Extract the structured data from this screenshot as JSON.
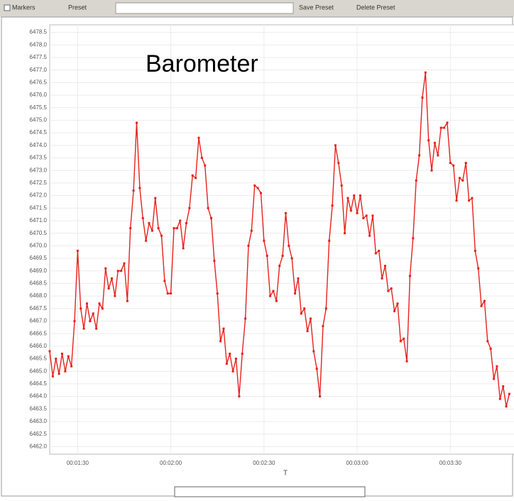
{
  "toolbar": {
    "markers": "Markers",
    "preset": "Preset",
    "save": "Save Preset",
    "delete": "Delete Preset"
  },
  "chart_data": {
    "type": "line",
    "title": "Barometer",
    "x_label": "T",
    "color": "#e8211d",
    "grid": true,
    "markers": true,
    "xlim": [
      81,
      230.5
    ],
    "ylim": [
      6461.7,
      6478.8
    ],
    "xticks": [
      {
        "value": 90,
        "label": "00:01:30"
      },
      {
        "value": 120,
        "label": "00:02:00"
      },
      {
        "value": 150,
        "label": "00:02:30"
      },
      {
        "value": 180,
        "label": "00:03:00"
      },
      {
        "value": 210,
        "label": "00:03:30"
      }
    ],
    "yticks": [
      {
        "value": 6462,
        "label": "6462.0"
      },
      6462.5,
      {
        "value": 6463,
        "label": "6463.0"
      },
      6463.5,
      {
        "value": 6464,
        "label": "6464.0"
      },
      6464.5,
      {
        "value": 6465,
        "label": "6465.0"
      },
      6465.5,
      {
        "value": 6466,
        "label": "6466.0"
      },
      6466.5,
      {
        "value": 6467,
        "label": "6467.0"
      },
      6467.5,
      {
        "value": 6468,
        "label": "6468.0"
      },
      6468.5,
      {
        "value": 6469,
        "label": "6469.0"
      },
      6469.5,
      {
        "value": 6470,
        "label": "6470.0"
      },
      6470.5,
      {
        "value": 6471,
        "label": "6471.0"
      },
      6471.5,
      {
        "value": 6472,
        "label": "6472.0"
      },
      6472.5,
      {
        "value": 6473,
        "label": "6473.0"
      },
      6473.5,
      {
        "value": 6474,
        "label": "6474.0"
      },
      6474.5,
      {
        "value": 6475,
        "label": "6475.0"
      },
      6475.5,
      {
        "value": 6476,
        "label": "6476.0"
      },
      6476.5,
      {
        "value": 6477,
        "label": "6477.0"
      },
      6477.5,
      {
        "value": 6478,
        "label": "6478.0"
      },
      6478.5
    ],
    "x": [
      81,
      82,
      83,
      84,
      85,
      86,
      87,
      88,
      89,
      90,
      91,
      92,
      93,
      94,
      95,
      96,
      97,
      98,
      99,
      100,
      101,
      102,
      103,
      104,
      105,
      106,
      107,
      108,
      109,
      110,
      111,
      112,
      113,
      114,
      115,
      116,
      117,
      118,
      119,
      120,
      121,
      122,
      123,
      124,
      125,
      126,
      127,
      128,
      129,
      130,
      131,
      132,
      133,
      134,
      135,
      136,
      137,
      138,
      139,
      140,
      141,
      142,
      143,
      144,
      145,
      146,
      147,
      148,
      149,
      150,
      151,
      152,
      153,
      154,
      155,
      156,
      157,
      158,
      159,
      160,
      161,
      162,
      163,
      164,
      165,
      166,
      167,
      168,
      169,
      170,
      171,
      172,
      173,
      174,
      175,
      176,
      177,
      178,
      179,
      180,
      181,
      182,
      183,
      184,
      185,
      186,
      187,
      188,
      189,
      190,
      191,
      192,
      193,
      194,
      195,
      196,
      197,
      198,
      199,
      200,
      201,
      202,
      203,
      204,
      205,
      206,
      207,
      208,
      209,
      210,
      211,
      212,
      213,
      214,
      215,
      216,
      217,
      218,
      219,
      220,
      221,
      222,
      223,
      224,
      225,
      226,
      227,
      228,
      229
    ],
    "values": [
      6465.8,
      6464.8,
      6465.5,
      6464.9,
      6465.7,
      6465.0,
      6465.6,
      6465.2,
      6467.0,
      6469.8,
      6467.5,
      6466.7,
      6467.7,
      6467.0,
      6467.3,
      6466.7,
      6467.7,
      6467.5,
      6469.1,
      6468.3,
      6468.7,
      6468.0,
      6469.0,
      6469.0,
      6469.3,
      6467.8,
      6470.7,
      6472.2,
      6474.9,
      6472.3,
      6471.1,
      6470.2,
      6470.9,
      6470.6,
      6471.9,
      6470.7,
      6470.4,
      6468.6,
      6468.1,
      6468.1,
      6470.7,
      6470.7,
      6471.0,
      6469.9,
      6470.9,
      6471.5,
      6472.8,
      6472.7,
      6474.3,
      6473.5,
      6473.2,
      6471.5,
      6471.1,
      6469.4,
      6468.1,
      6466.2,
      6466.7,
      6465.3,
      6465.7,
      6465.0,
      6465.5,
      6464.0,
      6465.7,
      6467.1,
      6470.0,
      6470.6,
      6472.4,
      6472.3,
      6472.1,
      6470.2,
      6469.6,
      6468.0,
      6468.2,
      6467.8,
      6469.2,
      6469.6,
      6471.3,
      6470.0,
      6469.5,
      6468.1,
      6468.7,
      6467.3,
      6467.5,
      6466.6,
      6467.1,
      6465.8,
      6465.1,
      6464.0,
      6466.8,
      6467.5,
      6470.2,
      6471.6,
      6474.0,
      6473.3,
      6472.4,
      6470.5,
      6471.9,
      6471.4,
      6472.0,
      6471.3,
      6472.0,
      6471.1,
      6471.2,
      6470.4,
      6471.2,
      6469.7,
      6469.8,
      6468.7,
      6469.2,
      6468.2,
      6468.3,
      6467.4,
      6467.7,
      6466.2,
      6466.3,
      6465.4,
      6468.8,
      6470.3,
      6472.6,
      6473.6,
      6475.9,
      6476.9,
      6474.2,
      6473.0,
      6474.1,
      6473.6,
      6474.7,
      6474.7,
      6474.9,
      6473.3,
      6473.2,
      6471.8,
      6472.7,
      6472.6,
      6473.3,
      6471.8,
      6471.9,
      6469.8,
      6469.1,
      6467.6,
      6467.8,
      6466.2,
      6465.9,
      6464.7,
      6465.2,
      6463.9,
      6464.4,
      6463.6,
      6464.1
    ]
  }
}
